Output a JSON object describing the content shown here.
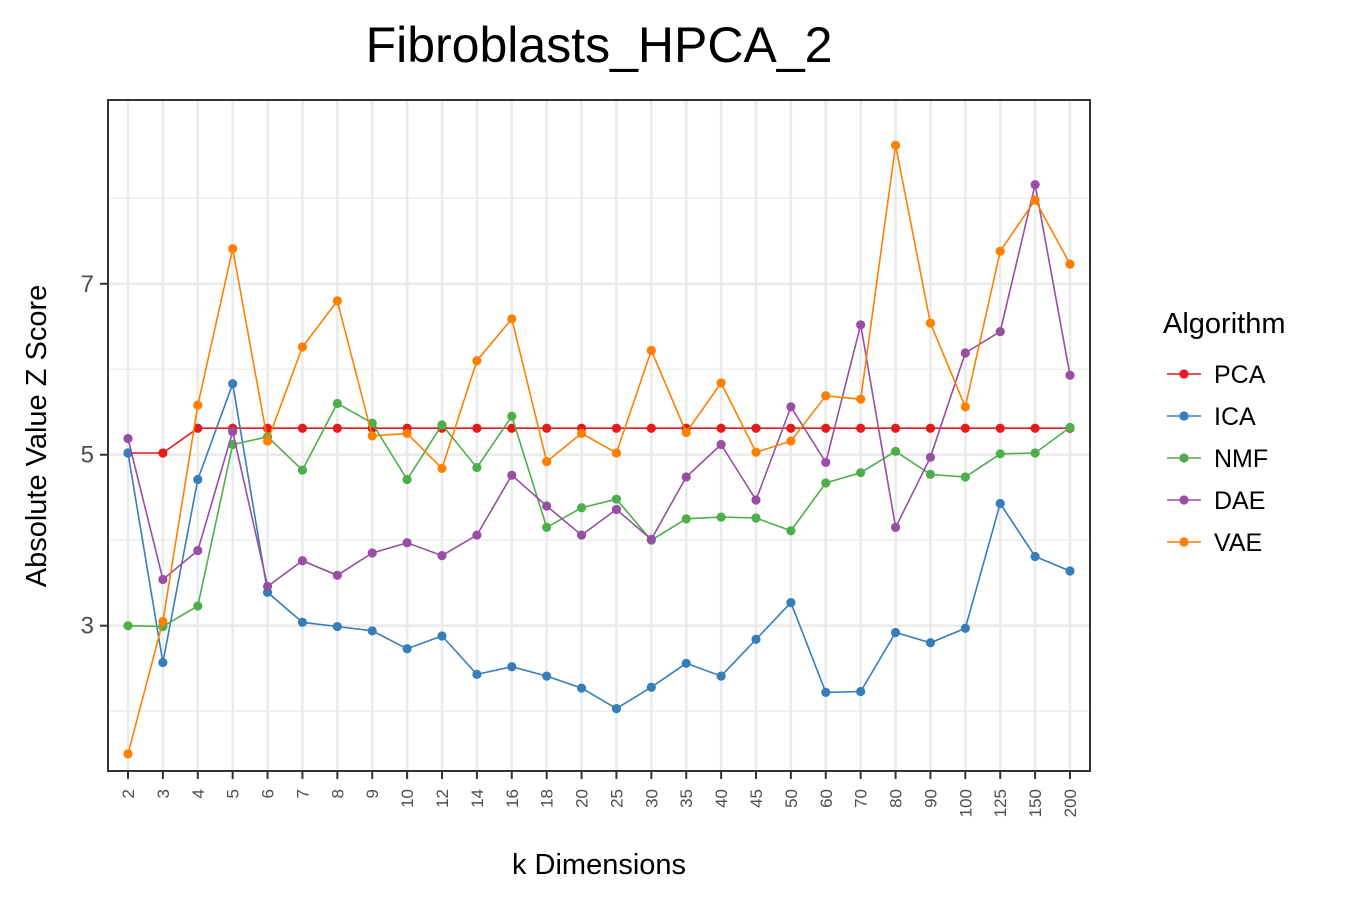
{
  "chart_data": {
    "type": "line",
    "title": "Fibroblasts_HPCA_2",
    "xlabel": "k Dimensions",
    "ylabel": "Absolute Value Z Score",
    "categories": [
      "2",
      "3",
      "4",
      "5",
      "6",
      "7",
      "8",
      "9",
      "10",
      "12",
      "14",
      "16",
      "18",
      "20",
      "25",
      "30",
      "35",
      "40",
      "45",
      "50",
      "60",
      "70",
      "80",
      "90",
      "100",
      "125",
      "150",
      "200"
    ],
    "ylim": [
      1.3,
      9.15
    ],
    "y_major_ticks": [
      3,
      5,
      7
    ],
    "y_minor_ticks": [
      2,
      4,
      6,
      8
    ],
    "grid": true,
    "legend": {
      "title": "Algorithm",
      "position": "right"
    },
    "series": [
      {
        "name": "PCA",
        "color": "#e41a1c",
        "values": [
          5.02,
          5.02,
          5.31,
          5.31,
          5.31,
          5.31,
          5.31,
          5.31,
          5.31,
          5.31,
          5.31,
          5.31,
          5.31,
          5.31,
          5.31,
          5.31,
          5.31,
          5.31,
          5.31,
          5.31,
          5.31,
          5.31,
          5.31,
          5.31,
          5.31,
          5.31,
          5.31,
          5.31
        ]
      },
      {
        "name": "ICA",
        "color": "#377eb8",
        "values": [
          5.02,
          2.57,
          4.71,
          5.83,
          3.39,
          3.04,
          2.99,
          2.94,
          2.73,
          2.88,
          2.43,
          2.52,
          2.41,
          2.27,
          2.03,
          2.28,
          2.56,
          2.41,
          2.84,
          3.27,
          2.22,
          2.23,
          2.92,
          2.8,
          2.97,
          4.43,
          3.81,
          3.64
        ]
      },
      {
        "name": "NMF",
        "color": "#4daf4a",
        "values": [
          3.0,
          2.99,
          3.23,
          5.12,
          5.21,
          4.82,
          5.6,
          5.37,
          4.71,
          5.35,
          4.85,
          5.45,
          4.15,
          4.38,
          4.48,
          4.0,
          4.25,
          4.27,
          4.26,
          4.11,
          4.67,
          4.79,
          5.04,
          4.77,
          4.74,
          5.01,
          5.02,
          5.32
        ]
      },
      {
        "name": "DAE",
        "color": "#984ea3",
        "values": [
          5.19,
          3.54,
          3.88,
          5.27,
          3.46,
          3.76,
          3.59,
          3.85,
          3.97,
          3.82,
          4.06,
          4.76,
          4.4,
          4.06,
          4.36,
          4.01,
          4.74,
          5.12,
          4.47,
          5.56,
          4.91,
          6.52,
          4.15,
          4.97,
          6.19,
          6.44,
          8.16,
          5.93
        ]
      },
      {
        "name": "VAE",
        "color": "#ff7f00",
        "values": [
          1.5,
          3.05,
          5.58,
          7.41,
          5.16,
          6.26,
          6.8,
          5.22,
          5.25,
          4.84,
          6.1,
          6.59,
          4.92,
          5.25,
          5.02,
          6.22,
          5.26,
          5.84,
          5.03,
          5.16,
          5.69,
          5.65,
          8.62,
          6.54,
          5.56,
          7.38,
          7.98,
          7.23
        ]
      }
    ]
  }
}
